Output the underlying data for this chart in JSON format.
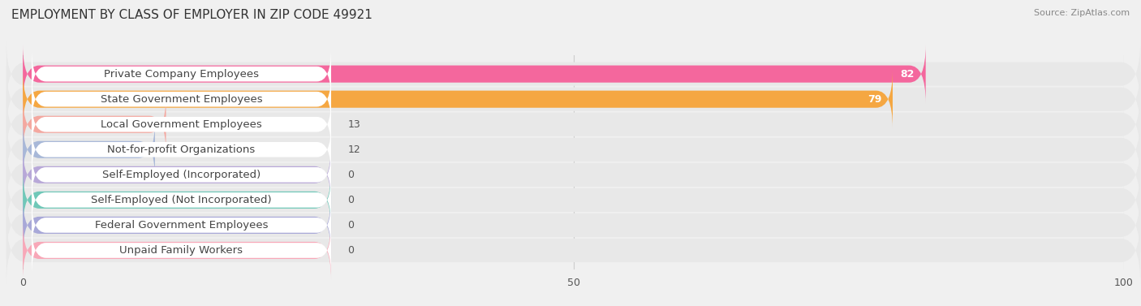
{
  "title": "EMPLOYMENT BY CLASS OF EMPLOYER IN ZIP CODE 49921",
  "source": "Source: ZipAtlas.com",
  "categories": [
    "Private Company Employees",
    "State Government Employees",
    "Local Government Employees",
    "Not-for-profit Organizations",
    "Self-Employed (Incorporated)",
    "Self-Employed (Not Incorporated)",
    "Federal Government Employees",
    "Unpaid Family Workers"
  ],
  "values": [
    82,
    79,
    13,
    12,
    0,
    0,
    0,
    0
  ],
  "bar_colors": [
    "#f4679d",
    "#f5a742",
    "#f4a8a0",
    "#a8b8d8",
    "#b8a8d8",
    "#70c8b8",
    "#a8a8d8",
    "#f8a8b8"
  ],
  "xlim": [
    0,
    100
  ],
  "xticks": [
    0,
    50,
    100
  ],
  "background_color": "#f0f0f0",
  "row_bg_color": "#e8e8e8",
  "label_bg_color": "#ffffff",
  "title_fontsize": 11,
  "label_fontsize": 9.5,
  "value_fontsize": 9,
  "bar_height": 0.68,
  "figsize": [
    14.06,
    3.77
  ],
  "dpi": 100
}
